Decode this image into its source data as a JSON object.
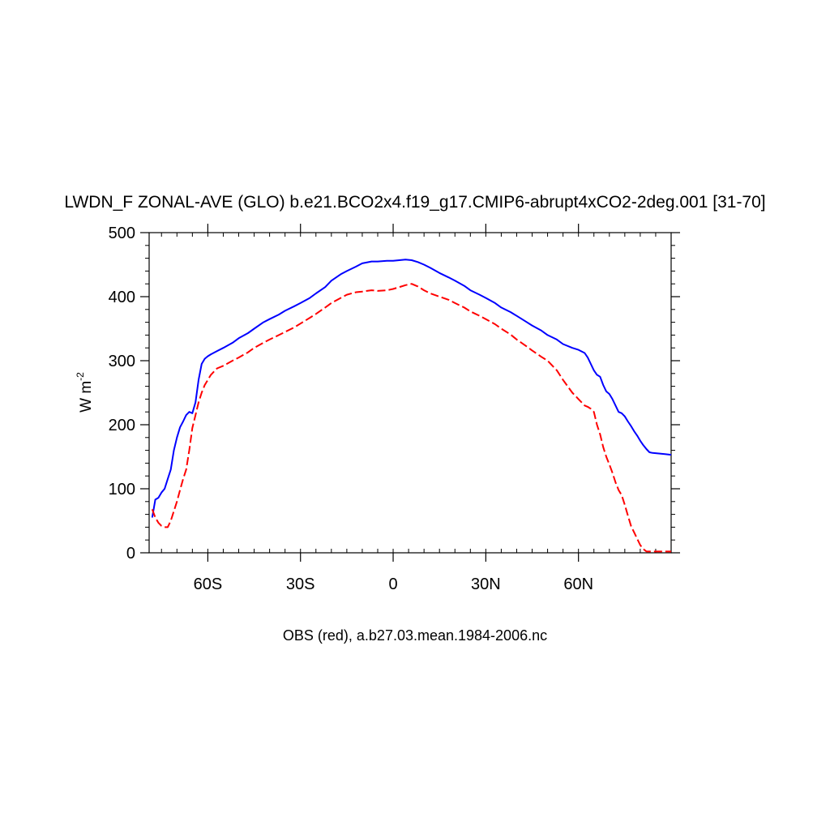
{
  "chart_data": {
    "type": "line",
    "title": "LWDN_F ZONAL-AVE (GLO) b.e21.BCO2x4.f19_g17.CMIP6-abrupt4xCO2-2deg.001 [31-70]",
    "footer": "OBS (red), a.b27.03.mean.1984-2006.nc",
    "ylabel_base": "W m",
    "ylabel_exp": "-2",
    "xlim": [
      -79,
      90
    ],
    "ylim": [
      0,
      500
    ],
    "x_ticks": [
      {
        "value": -60,
        "label": "60S"
      },
      {
        "value": -30,
        "label": "30S"
      },
      {
        "value": 0,
        "label": "0"
      },
      {
        "value": 30,
        "label": "30N"
      },
      {
        "value": 60,
        "label": "60N"
      }
    ],
    "y_ticks": [
      {
        "value": 0,
        "label": "0"
      },
      {
        "value": 100,
        "label": "100"
      },
      {
        "value": 200,
        "label": "200"
      },
      {
        "value": 300,
        "label": "300"
      },
      {
        "value": 400,
        "label": "400"
      },
      {
        "value": 500,
        "label": "500"
      }
    ],
    "grid": false,
    "series": [
      {
        "color": "#0000ff",
        "style": "solid",
        "x": [
          -78,
          -77,
          -76,
          -75,
          -74,
          -73,
          -72,
          -71,
          -70,
          -69,
          -68,
          -67,
          -66,
          -65,
          -64,
          -63,
          -62,
          -61,
          -60,
          -59,
          -57,
          -55,
          -52,
          -50,
          -47,
          -45,
          -42,
          -40,
          -37,
          -35,
          -32,
          -30,
          -27,
          -25,
          -22,
          -20,
          -17,
          -15,
          -12,
          -10,
          -7,
          -5,
          -2,
          0,
          2,
          4,
          6,
          8,
          10,
          12,
          15,
          18,
          20,
          23,
          25,
          28,
          30,
          33,
          35,
          38,
          40,
          43,
          45,
          48,
          50,
          53,
          55,
          58,
          60,
          62,
          63,
          64,
          65,
          66,
          67,
          68,
          69,
          70,
          71,
          72,
          73,
          74,
          75,
          76,
          77,
          78,
          79,
          80,
          81,
          82,
          83,
          84,
          86,
          88,
          90
        ],
        "y": [
          55,
          83,
          86,
          94,
          100,
          115,
          130,
          160,
          180,
          196,
          205,
          215,
          220,
          218,
          235,
          270,
          295,
          303,
          307,
          310,
          315,
          320,
          328,
          335,
          343,
          350,
          360,
          365,
          372,
          378,
          385,
          390,
          398,
          405,
          415,
          425,
          435,
          440,
          447,
          452,
          455,
          455,
          456,
          456,
          457,
          458,
          457,
          454,
          450,
          445,
          437,
          430,
          425,
          417,
          410,
          403,
          398,
          390,
          383,
          376,
          370,
          361,
          355,
          347,
          340,
          333,
          326,
          320,
          317,
          312,
          305,
          295,
          285,
          278,
          275,
          262,
          252,
          248,
          240,
          230,
          220,
          218,
          213,
          205,
          198,
          190,
          183,
          175,
          168,
          162,
          157,
          156,
          155,
          154,
          153
        ]
      },
      {
        "color": "#ff0000",
        "style": "dashed",
        "x": [
          -78,
          -77,
          -76,
          -75,
          -74,
          -73,
          -72,
          -71,
          -70,
          -69,
          -68,
          -67,
          -66,
          -65,
          -64,
          -63,
          -62,
          -61,
          -60,
          -59,
          -57,
          -55,
          -52,
          -50,
          -47,
          -45,
          -42,
          -40,
          -37,
          -35,
          -32,
          -30,
          -27,
          -25,
          -22,
          -20,
          -17,
          -15,
          -12,
          -10,
          -7,
          -5,
          -2,
          0,
          2,
          4,
          6,
          8,
          10,
          12,
          15,
          18,
          20,
          23,
          25,
          28,
          30,
          33,
          35,
          38,
          40,
          43,
          45,
          48,
          50,
          53,
          55,
          58,
          60,
          62,
          63,
          64,
          65,
          66,
          67,
          68,
          69,
          70,
          71,
          72,
          73,
          74,
          75,
          76,
          77,
          78,
          79,
          80,
          81,
          82,
          83,
          84,
          86,
          88,
          90
        ],
        "y": [
          68,
          55,
          47,
          42,
          40,
          40,
          50,
          65,
          80,
          98,
          115,
          130,
          160,
          195,
          215,
          235,
          250,
          262,
          270,
          278,
          288,
          292,
          300,
          305,
          313,
          320,
          328,
          333,
          340,
          345,
          352,
          358,
          367,
          373,
          383,
          390,
          398,
          403,
          407,
          408,
          410,
          409,
          410,
          412,
          415,
          418,
          420,
          416,
          410,
          405,
          400,
          395,
          390,
          383,
          377,
          370,
          365,
          357,
          350,
          341,
          333,
          323,
          316,
          306,
          300,
          285,
          270,
          250,
          240,
          230,
          228,
          225,
          220,
          200,
          185,
          165,
          150,
          138,
          125,
          110,
          98,
          90,
          75,
          58,
          42,
          32,
          22,
          12,
          6,
          2,
          2,
          2,
          2,
          2,
          2
        ]
      }
    ]
  }
}
